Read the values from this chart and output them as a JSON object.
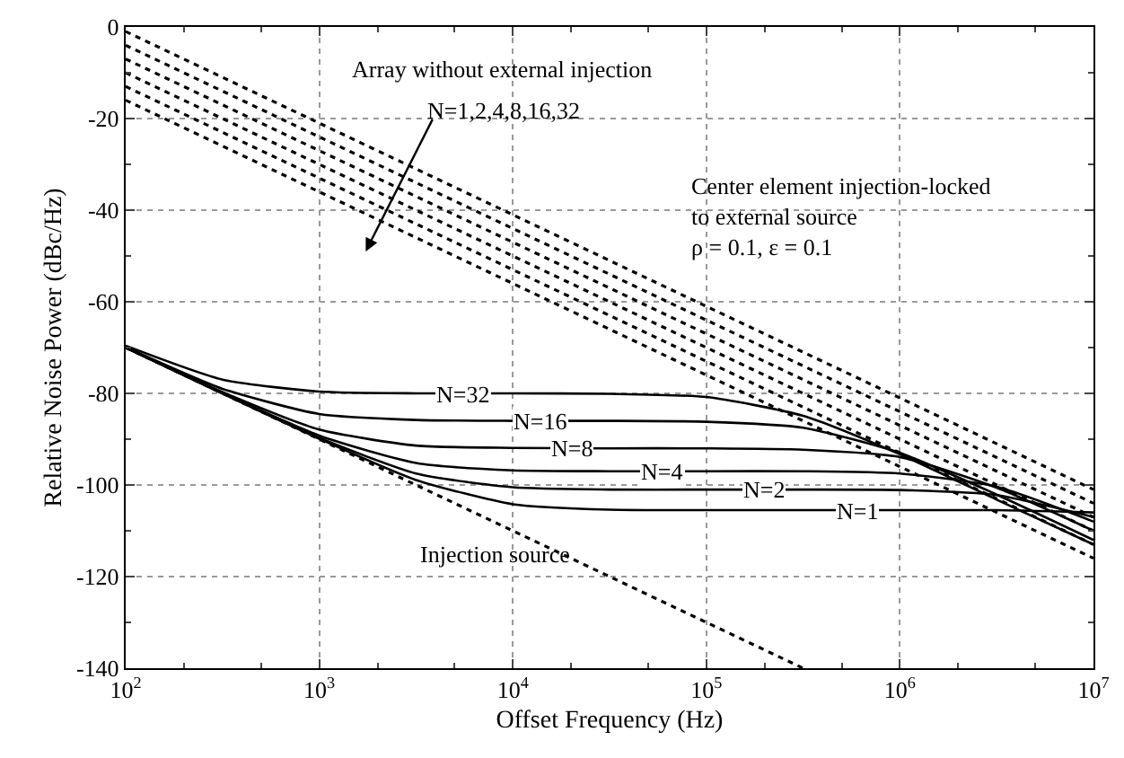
{
  "chart_data": {
    "type": "line",
    "xlabel": "Offset Frequency (Hz)",
    "ylabel": "Relative Noise Power (dBc/Hz)",
    "log": "x",
    "grid": true,
    "marker": "none",
    "x": [
      100,
      316,
      1000,
      3162,
      10000,
      31623,
      100000,
      316228,
      1000000,
      3162278,
      10000000
    ],
    "xlim": [
      100,
      10000000
    ],
    "xticks": [
      {
        "value": 100,
        "label": "10$^{2}$"
      },
      {
        "value": 1000,
        "label": "10$^{3}$"
      },
      {
        "value": 10000,
        "label": "10$^{4}$"
      },
      {
        "value": 100000,
        "label": "10$^{5}$"
      },
      {
        "value": 1000000,
        "label": "10$^{6}$"
      },
      {
        "value": 10000000,
        "label": "10$^{7}$"
      }
    ],
    "ylim": [
      -140,
      0
    ],
    "yticks": [
      0,
      -20,
      -40,
      -60,
      -80,
      -100,
      -120,
      -140
    ],
    "series": [
      {
        "color": "#000000",
        "line_style": "dotted",
        "x": [
          100,
          10000000
        ],
        "values": [
          -1,
          -101
        ]
      },
      {
        "color": "#000000",
        "line_style": "dotted",
        "x": [
          100,
          10000000
        ],
        "values": [
          -4,
          -104
        ]
      },
      {
        "color": "#000000",
        "line_style": "dotted",
        "x": [
          100,
          10000000
        ],
        "values": [
          -7,
          -107
        ]
      },
      {
        "color": "#000000",
        "line_style": "dotted",
        "x": [
          100,
          10000000
        ],
        "values": [
          -10,
          -110
        ]
      },
      {
        "color": "#000000",
        "line_style": "dotted",
        "x": [
          100,
          10000000
        ],
        "values": [
          -13,
          -113
        ]
      },
      {
        "color": "#000000",
        "line_style": "dotted",
        "x": [
          100,
          10000000
        ],
        "values": [
          -16,
          -116
        ]
      },
      {
        "color": "#000000",
        "line_style": "dotted",
        "x": [
          100,
          316228
        ],
        "values": [
          -70,
          -140
        ]
      },
      {
        "color": "#000000",
        "line_style": "solid",
        "values": [
          -69.6,
          -77,
          -79.6,
          -80,
          -80,
          -80.1,
          -80.8,
          -84.9,
          -93.3,
          -103.2,
          -113
        ]
      },
      {
        "color": "#000000",
        "line_style": "solid",
        "values": [
          -69.9,
          -79,
          -84.5,
          -85.8,
          -86,
          -86,
          -86.2,
          -87.5,
          -93,
          -102.1,
          -112
        ]
      },
      {
        "color": "#000000",
        "line_style": "solid",
        "values": [
          -70,
          -79.7,
          -87.9,
          -91.4,
          -91.9,
          -92,
          -92,
          -92.3,
          -93.9,
          -100.6,
          -110
        ]
      },
      {
        "color": "#000000",
        "line_style": "solid",
        "values": [
          -70,
          -79.9,
          -89.2,
          -95.2,
          -96.8,
          -97,
          -97,
          -97,
          -97.5,
          -100.4,
          -108
        ]
      },
      {
        "color": "#000000",
        "line_style": "solid",
        "values": [
          -70,
          -80,
          -89.7,
          -97.5,
          -100.5,
          -101,
          -101,
          -101,
          -101.1,
          -102.2,
          -107
        ]
      },
      {
        "color": "#000000",
        "line_style": "solid",
        "values": [
          -70,
          -80,
          -89.9,
          -98.9,
          -104.2,
          -105.4,
          -105.5,
          -105.5,
          -105.5,
          -105.5,
          -106
        ]
      }
    ],
    "annotations": [
      "Array without external injection",
      "N=1,2,4,8,16,32",
      "Center element injection-locked\nto external source\nρ = 0.1, ε = 0.1",
      "Injection source",
      {
        "text": "N=32",
        "x": 5500,
        "y": -80
      },
      {
        "text": "N=16",
        "x": 14000,
        "y": -86
      },
      {
        "text": "N=8",
        "x": 20000,
        "y": -92
      },
      {
        "text": "N=4",
        "x": 60000,
        "y": -97
      },
      {
        "text": "N=2",
        "x": 200000,
        "y": -101
      },
      {
        "text": "N=1",
        "x": 600000,
        "y": -105.5
      }
    ]
  }
}
